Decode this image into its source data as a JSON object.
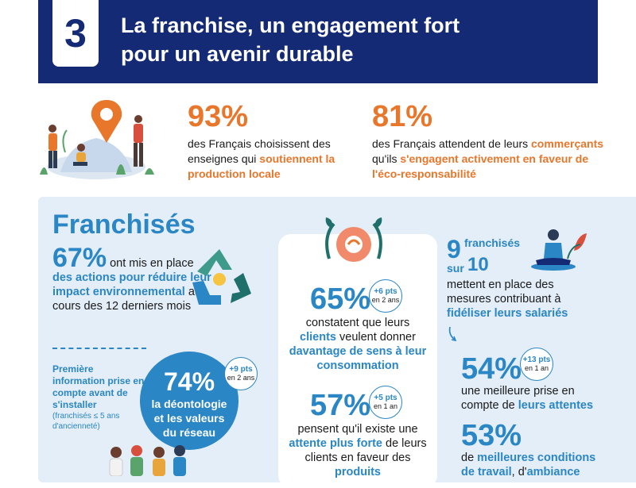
{
  "header": {
    "number": "3",
    "title_line1": "La franchise, un engagement fort",
    "title_line2": "pour un avenir durable"
  },
  "top_stats": [
    {
      "value": "93%",
      "text_plain": "des Français choisissent des enseignes qui ",
      "text_highlight": "soutiennent la production locale"
    },
    {
      "value": "81%",
      "text_plain1": "des Français attendent de leurs ",
      "text_highlight1": "commerçants",
      "text_plain2": " qu'ils ",
      "text_highlight2": "s'engagent activement en faveur de l'éco-responsabilité"
    }
  ],
  "panel": {
    "title": "Franchisés",
    "stat_67": {
      "value": "67%",
      "text_plain1": " ont mis en place ",
      "text_highlight": "des actions pour réduire leur impact environnemental",
      "text_plain2": " au cours des 12 derniers mois"
    },
    "first_info": {
      "label": "Première information prise en compte avant de s'installer",
      "note": "(franchisés ≤ 5 ans d'ancienneté)"
    },
    "stat_74": {
      "value": "74%",
      "line1": "la déontologie",
      "line2": "et les valeurs",
      "line3": "du réseau",
      "badge_top": "+9 pts",
      "badge_bottom": "en 2 ans"
    },
    "stat_65": {
      "value": "65%",
      "badge_top": "+6 pts",
      "badge_bottom": "en 2 ans",
      "text_plain1": "constatent que leurs ",
      "text_highlight1": "clients",
      "text_plain2": " veulent donner ",
      "text_highlight2": "davantage de sens à leur consommation"
    },
    "stat_57": {
      "value": "57%",
      "badge_top": "+5 pts",
      "badge_bottom": "en 1 an",
      "text_plain1": "pensent qu'il existe une ",
      "text_highlight1": "attente plus forte",
      "text_plain2": " de leurs clients en faveur des ",
      "text_highlight2": "produits"
    },
    "stat_9_10": {
      "num": "9",
      "word1": "franchisés",
      "word2": "sur",
      "den": "10",
      "text_plain": "mettent en place des mesures contribuant à ",
      "text_highlight": "fidéliser leurs salariés"
    },
    "stat_54": {
      "value": "54%",
      "badge_top": "+13 pts",
      "badge_bottom": "en 1 an",
      "text_plain": "une meilleure prise en compte de ",
      "text_highlight": "leurs attentes"
    },
    "stat_53": {
      "value": "53%",
      "text_plain1": "de ",
      "text_highlight1": "meilleures conditions de travail",
      "text_plain2": ", d'",
      "text_highlight2": "ambiance"
    }
  },
  "colors": {
    "navy": "#142a74",
    "orange": "#e8762b",
    "blue": "#2b86c5",
    "panel_bg": "#e3eef8"
  },
  "icons": [
    "map-pin-icon",
    "recycle-icon",
    "heart-cycle-icon",
    "meditation-person-icon",
    "curved-arrow-icon"
  ]
}
